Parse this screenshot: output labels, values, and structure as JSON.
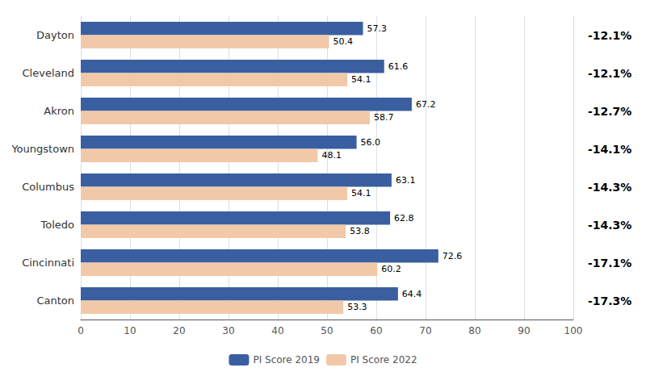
{
  "chart_data": {
    "type": "bar",
    "orientation": "horizontal",
    "categories": [
      "Dayton",
      "Cleveland",
      "Akron",
      "Youngstown",
      "Columbus",
      "Toledo",
      "Cincinnati",
      "Canton"
    ],
    "series": [
      {
        "name": "PI Score 2019",
        "color": "#3A5FA0",
        "values": [
          57.3,
          61.6,
          67.2,
          56.0,
          63.1,
          62.8,
          72.6,
          64.4
        ],
        "value_labels": [
          "57.3",
          "61.6",
          "67.2",
          "56.0",
          "63.1",
          "62.8",
          "72.6",
          "64.4"
        ]
      },
      {
        "name": "PI Score 2022",
        "color": "#F2C9A8",
        "values": [
          50.4,
          54.1,
          58.7,
          48.1,
          54.1,
          53.8,
          60.2,
          53.3
        ]
      }
    ],
    "annotations": [
      "-12.1%",
      "-12.1%",
      "-12.7%",
      "-14.1%",
      "-14.3%",
      "-14.3%",
      "-17.1%",
      "-17.3%"
    ],
    "xlim": [
      0,
      100
    ],
    "xticks": [
      0,
      10,
      20,
      30,
      40,
      50,
      60,
      70,
      80,
      90,
      100
    ],
    "grid": true,
    "data_labels": true,
    "legend": "bottom"
  }
}
